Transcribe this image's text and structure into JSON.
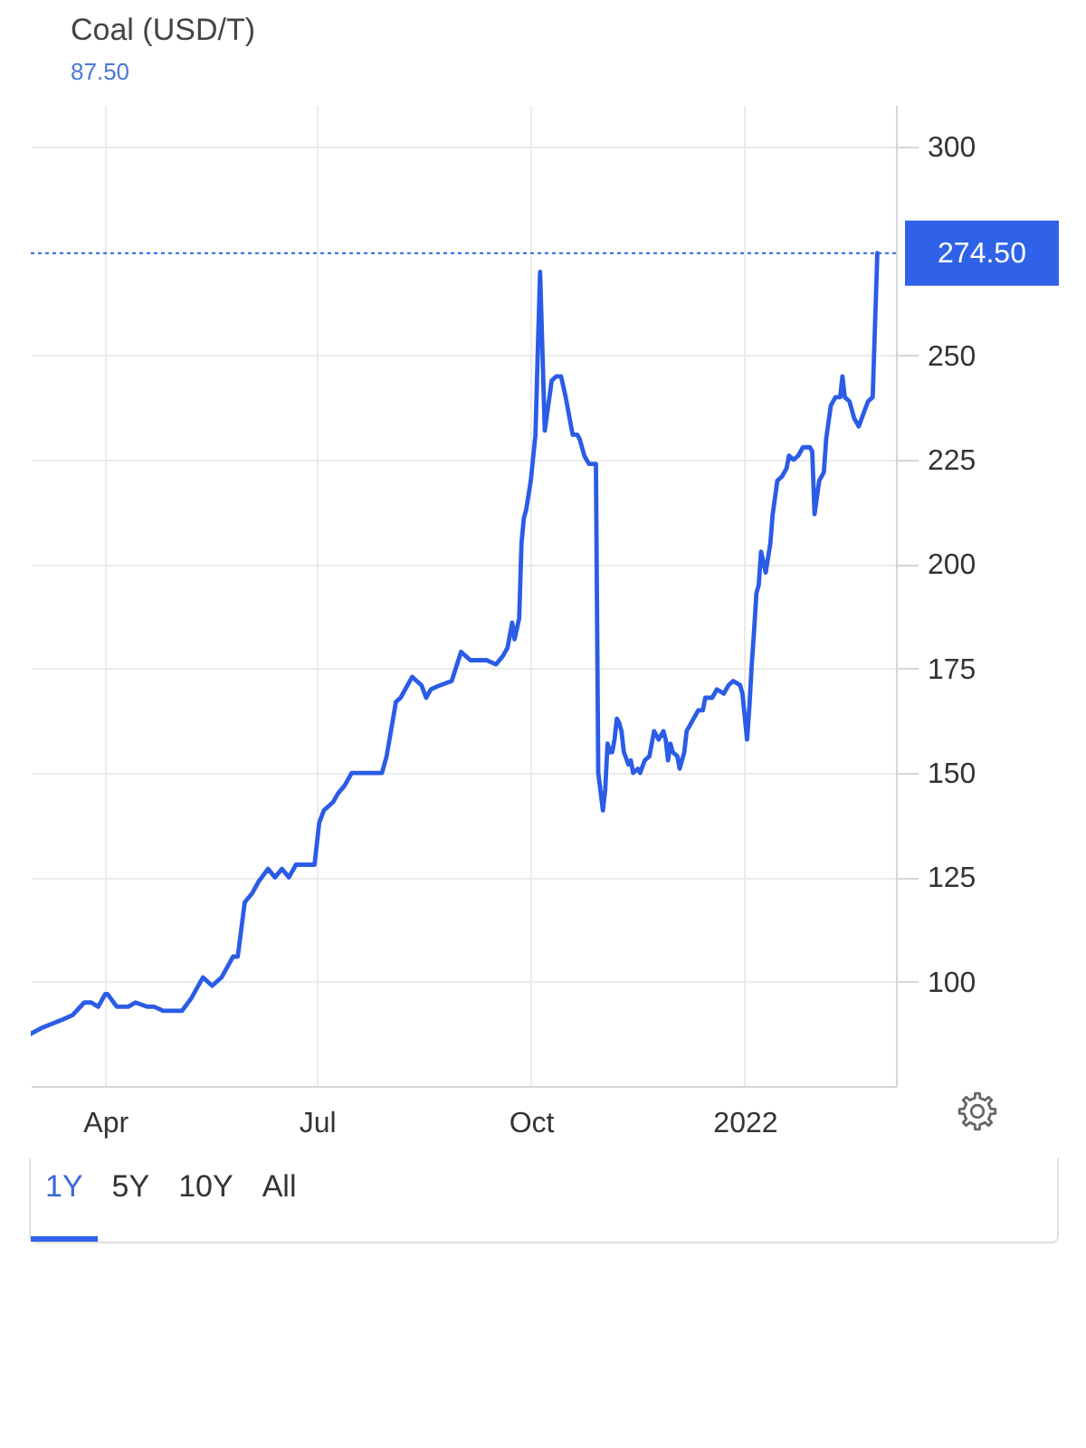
{
  "chart_data": {
    "type": "line",
    "title": "Coal (USD/T)",
    "subtitle": "87.50",
    "x": [
      "2021-02-28",
      "2021-03-05",
      "2021-03-14",
      "2021-03-18",
      "2021-03-23",
      "2021-03-26",
      "2021-03-29",
      "2021-04-01",
      "2021-04-02",
      "2021-04-06",
      "2021-04-11",
      "2021-04-14",
      "2021-04-19",
      "2021-04-22",
      "2021-04-26",
      "2021-05-02",
      "2021-05-04",
      "2021-05-08",
      "2021-05-13",
      "2021-05-17",
      "2021-05-21",
      "2021-05-23",
      "2021-05-26",
      "2021-05-28",
      "2021-05-31",
      "2021-06-03",
      "2021-06-06",
      "2021-06-10",
      "2021-06-13",
      "2021-06-16",
      "2021-06-19",
      "2021-06-22",
      "2021-06-30",
      "2021-07-02",
      "2021-07-04",
      "2021-07-08",
      "2021-07-10",
      "2021-07-13",
      "2021-07-16",
      "2021-07-22",
      "2021-07-29",
      "2021-07-31",
      "2021-08-04",
      "2021-08-06",
      "2021-08-11",
      "2021-08-15",
      "2021-08-17",
      "2021-08-19",
      "2021-08-23",
      "2021-08-28",
      "2021-09-01",
      "2021-09-05",
      "2021-09-12",
      "2021-09-16",
      "2021-09-19",
      "2021-09-21",
      "2021-09-23",
      "2021-09-24",
      "2021-09-26",
      "2021-09-27",
      "2021-09-28",
      "2021-09-29",
      "2021-10-01",
      "2021-10-03",
      "2021-10-04",
      "2021-10-05",
      "2021-10-07",
      "2021-10-10",
      "2021-10-12",
      "2021-10-14",
      "2021-10-16",
      "2021-10-18",
      "2021-10-19",
      "2021-10-21",
      "2021-10-22",
      "2021-10-24",
      "2021-10-26",
      "2021-10-29",
      "2021-10-30",
      "2021-11-01",
      "2021-11-02",
      "2021-11-03",
      "2021-11-04",
      "2021-11-05",
      "2021-11-06",
      "2021-11-07",
      "2021-11-08",
      "2021-11-09",
      "2021-11-10",
      "2021-11-12",
      "2021-11-13",
      "2021-11-14",
      "2021-11-16",
      "2021-11-17",
      "2021-11-19",
      "2021-11-21",
      "2021-11-23",
      "2021-11-25",
      "2021-11-27",
      "2021-11-28",
      "2021-11-29",
      "2021-11-30",
      "2021-12-01",
      "2021-12-03",
      "2021-12-04",
      "2021-12-06",
      "2021-12-07",
      "2021-12-10",
      "2021-12-12",
      "2021-12-14",
      "2021-12-15",
      "2021-12-18",
      "2021-12-20",
      "2021-12-23",
      "2021-12-25",
      "2021-12-27",
      "2021-12-30",
      "2021-12-31",
      "2022-01-02",
      "2022-01-03",
      "2022-01-04",
      "2022-01-05",
      "2022-01-06",
      "2022-01-07",
      "2022-01-08",
      "2022-01-10",
      "2022-01-12",
      "2022-01-13",
      "2022-01-15",
      "2022-01-17",
      "2022-01-19",
      "2022-01-20",
      "2022-01-22",
      "2022-01-24",
      "2022-01-26",
      "2022-01-29",
      "2022-01-30",
      "2022-01-31",
      "2022-02-02",
      "2022-02-04",
      "2022-02-05",
      "2022-02-07",
      "2022-02-09",
      "2022-02-11",
      "2022-02-12",
      "2022-02-13",
      "2022-02-15",
      "2022-02-17",
      "2022-02-19",
      "2022-02-21",
      "2022-02-23",
      "2022-02-25",
      "2022-02-27"
    ],
    "series": [
      {
        "color": "#2b5ce6",
        "values": [
          87.5,
          89,
          91,
          92,
          95,
          95,
          94,
          97,
          97,
          94,
          94,
          95,
          94,
          94,
          93,
          93,
          93,
          96,
          101,
          99,
          101,
          103,
          106,
          106,
          119,
          121,
          124,
          127,
          125,
          127,
          125,
          128,
          128,
          138,
          141,
          143,
          145,
          147,
          150,
          150,
          150,
          154,
          167,
          168,
          173,
          171,
          168,
          170,
          171,
          172,
          179,
          177,
          177,
          176,
          178,
          180,
          186,
          182,
          187,
          205,
          211,
          213,
          220,
          231,
          251,
          270,
          232,
          244,
          245,
          245,
          240,
          234,
          231,
          231,
          230,
          226,
          224,
          224,
          150,
          141,
          146,
          157,
          155,
          155,
          158,
          163,
          162,
          160,
          155,
          152,
          153,
          150,
          151,
          150,
          153,
          154,
          160,
          158,
          160,
          158,
          153,
          157,
          155,
          154,
          151,
          155,
          160,
          163,
          165,
          165,
          168,
          168,
          170,
          169,
          171,
          172,
          171,
          169,
          158,
          166,
          176,
          184,
          193,
          195,
          203,
          198,
          205,
          212,
          220,
          221,
          223,
          226,
          225,
          226,
          228,
          228,
          227,
          212,
          220,
          222,
          230,
          238,
          240,
          240,
          245,
          240,
          239,
          235,
          233,
          236,
          239,
          240,
          274.5
        ]
      }
    ],
    "xlim": [
      "2021-02-28",
      "2022-03-07"
    ],
    "xticks": [
      {
        "value": "2021-04",
        "label": "Apr"
      },
      {
        "value": "2021-07",
        "label": "Jul"
      },
      {
        "value": "2021-10",
        "label": "Oct"
      },
      {
        "value": "2022",
        "label": "2022"
      }
    ],
    "ylim": [
      75,
      310
    ],
    "yticks": [
      100,
      125,
      150,
      175,
      200,
      225,
      250,
      300
    ],
    "grid": true,
    "ref_lines": [
      {
        "axis": "y",
        "value": 274.5,
        "label": "274.50",
        "color": "#2f62e8",
        "line_style": "dotted"
      }
    ],
    "annotations": [
      "1Y",
      "5Y",
      "10Y",
      "All"
    ]
  }
}
